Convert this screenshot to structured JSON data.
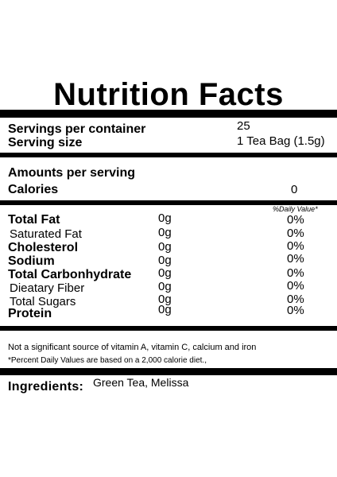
{
  "title": "Nutrition Facts",
  "servings": {
    "container_label": "Servings per container",
    "container_value": "25",
    "size_label": "Serving size",
    "size_value": "1 Tea Bag (1.5g)"
  },
  "amounts": {
    "header": "Amounts per serving",
    "calories_label": "Calories",
    "calories_value": "0"
  },
  "daily_value_header": "%Daily Value*",
  "nutrients": [
    {
      "label": "Total Fat",
      "amount": "0g",
      "dv": "0%"
    },
    {
      "label": "Saturated Fat",
      "amount": "0g",
      "dv": "0%"
    },
    {
      "label": "Cholesterol",
      "amount": "0g",
      "dv": "0%"
    },
    {
      "label": "Sodium",
      "amount": "0g",
      "dv": "0%"
    },
    {
      "label": "Total Carbonhydrate",
      "amount": "0g",
      "dv": "0%"
    },
    {
      "label": "Dieatary Fiber",
      "amount": "0g",
      "dv": "0%"
    },
    {
      "label": "Total Sugars",
      "amount": "0g",
      "dv": "0%"
    },
    {
      "label": "Protein",
      "amount": "0g",
      "dv": "0%"
    }
  ],
  "footnotes": {
    "vitamins": "Not a significant source of vitamin A, vitamin C, calcium and iron",
    "daily_values": "*Percent Daily Values are based on a 2,000 calorie diet.,"
  },
  "ingredients": {
    "label": "Ingredients:",
    "value": "Green Tea, Melissa"
  }
}
